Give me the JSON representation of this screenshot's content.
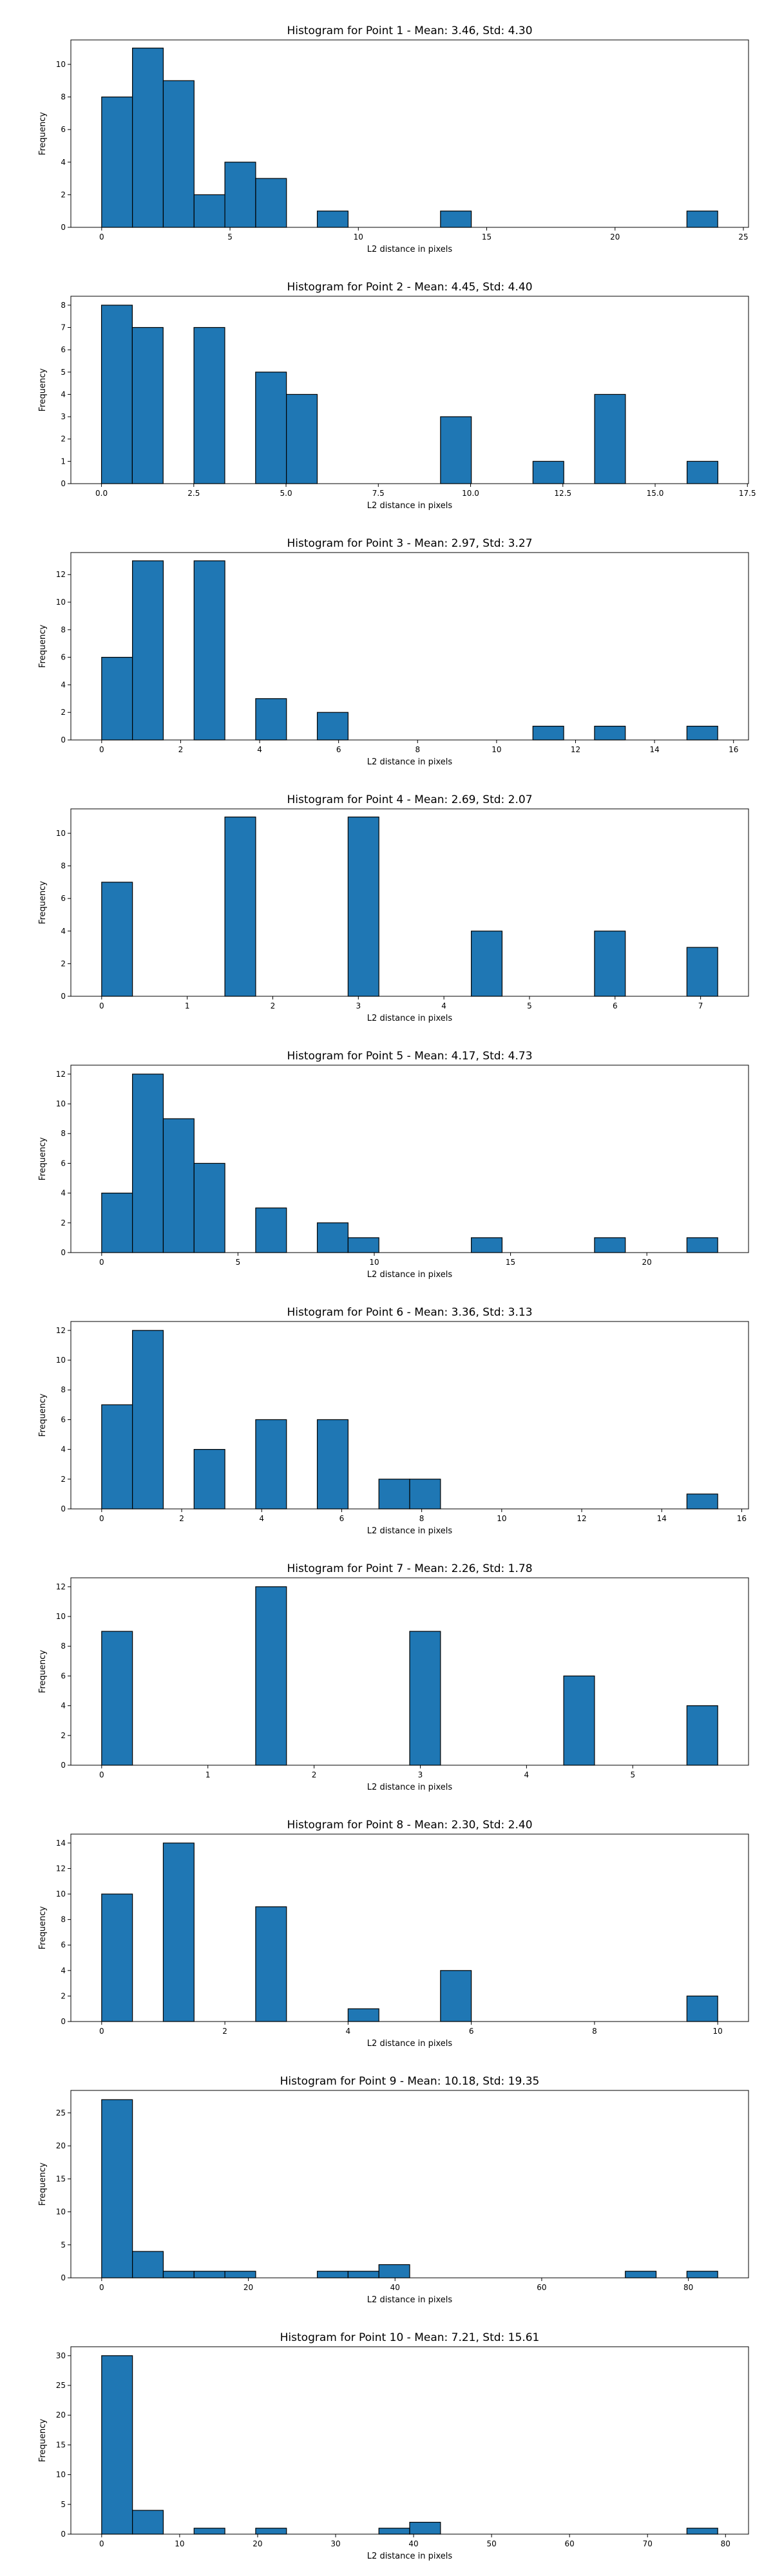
{
  "chart_data": [
    {
      "type": "bar",
      "title": "Histogram for Point 1 - Mean: 3.46, Std: 4.30",
      "xlabel": "L2 distance in pixels",
      "ylabel": "Frequency",
      "xlim": [
        -1.2,
        25.2
      ],
      "ylim": [
        0,
        11.5
      ],
      "xticks": [
        0,
        5,
        10,
        15,
        20,
        25
      ],
      "xticklabels": [
        "0",
        "5",
        "10",
        "15",
        "20",
        "25"
      ],
      "yticks": [
        0,
        2,
        4,
        6,
        8,
        10
      ],
      "yticklabels": [
        "0",
        "2",
        "4",
        "6",
        "8",
        "10"
      ],
      "bin_start": 0.0,
      "bin_width": 1.2,
      "values": [
        8,
        11,
        9,
        2,
        4,
        3,
        0,
        1,
        0,
        0,
        0,
        1,
        0,
        0,
        0,
        0,
        0,
        0,
        0,
        1
      ]
    },
    {
      "type": "bar",
      "title": "Histogram for Point 2 - Mean: 4.45, Std: 4.40",
      "xlabel": "L2 distance in pixels",
      "ylabel": "Frequency",
      "xlim": [
        -0.83,
        17.53
      ],
      "ylim": [
        0,
        8.4
      ],
      "xticks": [
        0.0,
        2.5,
        5.0,
        7.5,
        10.0,
        12.5,
        15.0,
        17.5
      ],
      "xticklabels": [
        "0.0",
        "2.5",
        "5.0",
        "7.5",
        "10.0",
        "12.5",
        "15.0",
        "17.5"
      ],
      "yticks": [
        0,
        1,
        2,
        3,
        4,
        5,
        6,
        7,
        8
      ],
      "yticklabels": [
        "0",
        "1",
        "2",
        "3",
        "4",
        "5",
        "6",
        "7",
        "8"
      ],
      "bin_start": 0.0,
      "bin_width": 0.835,
      "values": [
        8,
        7,
        0,
        7,
        0,
        5,
        4,
        0,
        0,
        0,
        0,
        3,
        0,
        0,
        1,
        0,
        4,
        0,
        0,
        1
      ]
    },
    {
      "type": "bar",
      "title": "Histogram for Point 3 - Mean: 2.97, Std: 3.27",
      "xlabel": "L2 distance in pixels",
      "ylabel": "Frequency",
      "xlim": [
        -0.78,
        16.38
      ],
      "ylim": [
        0,
        13.6
      ],
      "xticks": [
        0,
        2,
        4,
        6,
        8,
        10,
        12,
        14,
        16
      ],
      "xticklabels": [
        "0",
        "2",
        "4",
        "6",
        "8",
        "10",
        "12",
        "14",
        "16"
      ],
      "yticks": [
        0,
        2,
        4,
        6,
        8,
        10,
        12
      ],
      "yticklabels": [
        "0",
        "2",
        "4",
        "6",
        "8",
        "10",
        "12"
      ],
      "bin_start": 0.0,
      "bin_width": 0.78,
      "values": [
        6,
        13,
        0,
        13,
        0,
        3,
        0,
        2,
        0,
        0,
        0,
        0,
        0,
        0,
        1,
        0,
        1,
        0,
        0,
        1
      ]
    },
    {
      "type": "bar",
      "title": "Histogram for Point 4 - Mean: 2.69, Std: 2.07",
      "xlabel": "L2 distance in pixels",
      "ylabel": "Frequency",
      "xlim": [
        -0.36,
        7.56
      ],
      "ylim": [
        0,
        11.5
      ],
      "xticks": [
        0,
        1,
        2,
        3,
        4,
        5,
        6,
        7
      ],
      "xticklabels": [
        "0",
        "1",
        "2",
        "3",
        "4",
        "5",
        "6",
        "7"
      ],
      "yticks": [
        0,
        2,
        4,
        6,
        8,
        10
      ],
      "yticklabels": [
        "0",
        "2",
        "4",
        "6",
        "8",
        "10"
      ],
      "bin_start": 0.0,
      "bin_width": 0.36,
      "values": [
        7,
        0,
        0,
        0,
        11,
        0,
        0,
        0,
        11,
        0,
        0,
        0,
        4,
        0,
        0,
        0,
        4,
        0,
        0,
        3
      ]
    },
    {
      "type": "bar",
      "title": "Histogram for Point 5 - Mean: 4.17, Std: 4.73",
      "xlabel": "L2 distance in pixels",
      "ylabel": "Frequency",
      "xlim": [
        -1.13,
        23.73
      ],
      "ylim": [
        0,
        12.6
      ],
      "xticks": [
        0,
        5,
        10,
        15,
        20
      ],
      "xticklabels": [
        "0",
        "5",
        "10",
        "15",
        "20"
      ],
      "yticks": [
        0,
        2,
        4,
        6,
        8,
        10,
        12
      ],
      "yticklabels": [
        "0",
        "2",
        "4",
        "6",
        "8",
        "10",
        "12"
      ],
      "bin_start": 0.0,
      "bin_width": 1.13,
      "values": [
        4,
        12,
        9,
        6,
        0,
        3,
        0,
        2,
        1,
        0,
        0,
        0,
        1,
        0,
        0,
        0,
        1,
        0,
        0,
        1
      ]
    },
    {
      "type": "bar",
      "title": "Histogram for Point 6 - Mean: 3.36, Std: 3.13",
      "xlabel": "L2 distance in pixels",
      "ylabel": "Frequency",
      "xlim": [
        -0.77,
        16.17
      ],
      "ylim": [
        0,
        12.6
      ],
      "xticks": [
        0,
        2,
        4,
        6,
        8,
        10,
        12,
        14,
        16
      ],
      "xticklabels": [
        "0",
        "2",
        "4",
        "6",
        "8",
        "10",
        "12",
        "14",
        "16"
      ],
      "yticks": [
        0,
        2,
        4,
        6,
        8,
        10,
        12
      ],
      "yticklabels": [
        "0",
        "2",
        "4",
        "6",
        "8",
        "10",
        "12"
      ],
      "bin_start": 0.0,
      "bin_width": 0.77,
      "values": [
        7,
        12,
        0,
        4,
        0,
        6,
        0,
        6,
        0,
        2,
        2,
        0,
        0,
        0,
        0,
        0,
        0,
        0,
        0,
        1
      ]
    },
    {
      "type": "bar",
      "title": "Histogram for Point 7 - Mean: 2.26, Std: 1.78",
      "xlabel": "L2 distance in pixels",
      "ylabel": "Frequency",
      "xlim": [
        -0.29,
        6.09
      ],
      "ylim": [
        0,
        12.6
      ],
      "xticks": [
        0,
        1,
        2,
        3,
        4,
        5
      ],
      "xticklabels": [
        "0",
        "1",
        "2",
        "3",
        "4",
        "5"
      ],
      "yticks": [
        0,
        2,
        4,
        6,
        8,
        10,
        12
      ],
      "yticklabels": [
        "0",
        "2",
        "4",
        "6",
        "8",
        "10",
        "12"
      ],
      "bin_start": 0.0,
      "bin_width": 0.29,
      "values": [
        9,
        0,
        0,
        0,
        0,
        12,
        0,
        0,
        0,
        0,
        9,
        0,
        0,
        0,
        0,
        6,
        0,
        0,
        0,
        4
      ]
    },
    {
      "type": "bar",
      "title": "Histogram for Point 8 - Mean: 2.30, Std: 2.40",
      "xlabel": "L2 distance in pixels",
      "ylabel": "Frequency",
      "xlim": [
        -0.5,
        10.5
      ],
      "ylim": [
        0,
        14.7
      ],
      "xticks": [
        0,
        2,
        4,
        6,
        8,
        10
      ],
      "xticklabels": [
        "0",
        "2",
        "4",
        "6",
        "8",
        "10"
      ],
      "yticks": [
        0,
        2,
        4,
        6,
        8,
        10,
        12,
        14
      ],
      "yticklabels": [
        "0",
        "2",
        "4",
        "6",
        "8",
        "10",
        "12",
        "14"
      ],
      "bin_start": 0.0,
      "bin_width": 0.5,
      "values": [
        10,
        0,
        14,
        0,
        0,
        9,
        0,
        0,
        1,
        0,
        0,
        4,
        0,
        0,
        0,
        0,
        0,
        0,
        0,
        2
      ]
    },
    {
      "type": "bar",
      "title": "Histogram for Point 9 - Mean: 10.18, Std: 19.35",
      "xlabel": "L2 distance in pixels",
      "ylabel": "Frequency",
      "xlim": [
        -4.2,
        88.2
      ],
      "ylim": [
        0,
        28.4
      ],
      "xticks": [
        0,
        20,
        40,
        60,
        80
      ],
      "xticklabels": [
        "0",
        "20",
        "40",
        "60",
        "80"
      ],
      "yticks": [
        0,
        5,
        10,
        15,
        20,
        25
      ],
      "yticklabels": [
        "0",
        "5",
        "10",
        "15",
        "20",
        "25"
      ],
      "bin_start": 0.0,
      "bin_width": 4.2,
      "values": [
        27,
        4,
        1,
        1,
        1,
        0,
        0,
        1,
        1,
        2,
        0,
        0,
        0,
        0,
        0,
        0,
        0,
        1,
        0,
        1
      ]
    },
    {
      "type": "bar",
      "title": "Histogram for Point 10 - Mean: 7.21, Std: 15.61",
      "xlabel": "L2 distance in pixels",
      "ylabel": "Frequency",
      "xlim": [
        -3.95,
        82.95
      ],
      "ylim": [
        0,
        31.5
      ],
      "xticks": [
        0,
        10,
        20,
        30,
        40,
        50,
        60,
        70,
        80
      ],
      "xticklabels": [
        "0",
        "10",
        "20",
        "30",
        "40",
        "50",
        "60",
        "70",
        "80"
      ],
      "yticks": [
        0,
        5,
        10,
        15,
        20,
        25,
        30
      ],
      "yticklabels": [
        "0",
        "5",
        "10",
        "15",
        "20",
        "25",
        "30"
      ],
      "bin_start": 0.0,
      "bin_width": 3.95,
      "values": [
        30,
        4,
        0,
        1,
        0,
        1,
        0,
        0,
        0,
        1,
        2,
        0,
        0,
        0,
        0,
        0,
        0,
        0,
        0,
        1
      ]
    }
  ]
}
